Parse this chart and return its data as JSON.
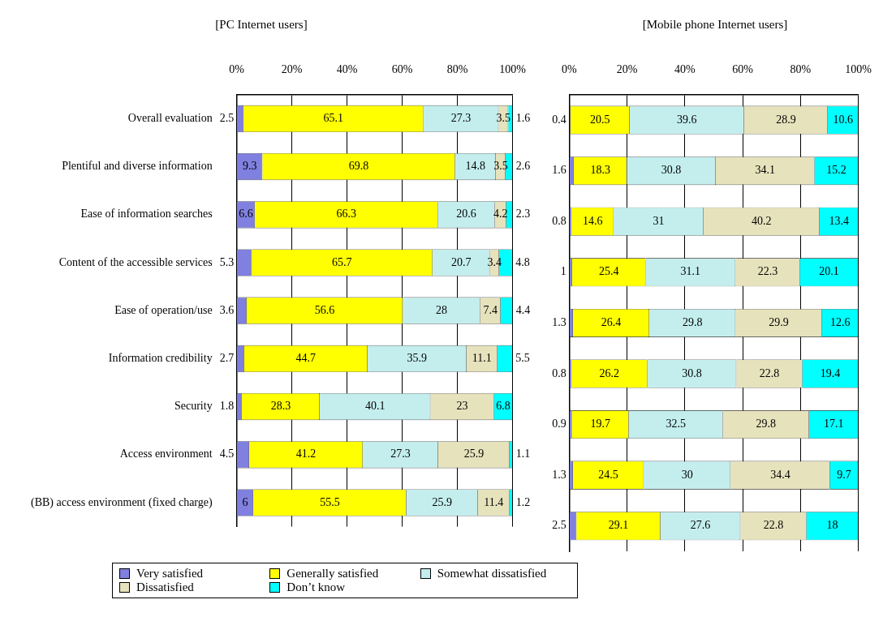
{
  "chart_data": [
    {
      "type": "bar",
      "orientation": "horizontal",
      "stacked": true,
      "title": "[PC Internet users]",
      "categories": [
        "Overall evaluation",
        "Plentiful and diverse information",
        "Ease of information searches",
        "Content of the accessible services",
        "Ease of operation/use",
        "Information credibility",
        "Security",
        "Access environment",
        "(BB) access environment (fixed charge)"
      ],
      "series": [
        {
          "name": "Very satisfied",
          "color": "#8080e0",
          "values": [
            2.5,
            9.3,
            6.6,
            5.3,
            3.6,
            2.7,
            1.8,
            4.5,
            6.0
          ]
        },
        {
          "name": "Generally satisfied",
          "color": "#ffff00",
          "values": [
            65.1,
            69.8,
            66.3,
            65.7,
            56.6,
            44.7,
            28.3,
            41.2,
            55.5
          ]
        },
        {
          "name": "Somewhat dissatisfied",
          "color": "#c4eeee",
          "values": [
            27.3,
            14.8,
            20.6,
            20.7,
            28.0,
            35.9,
            40.1,
            27.3,
            25.9
          ]
        },
        {
          "name": "Dissatisfied",
          "color": "#e6e2bc",
          "values": [
            3.5,
            3.5,
            4.2,
            3.4,
            7.4,
            11.1,
            23.0,
            25.9,
            11.4
          ]
        },
        {
          "name": "Don’t know",
          "color": "#00ffff",
          "values": [
            1.6,
            2.6,
            2.3,
            4.8,
            4.4,
            5.5,
            6.8,
            1.1,
            1.2
          ]
        }
      ],
      "xlim": [
        0,
        100
      ],
      "xticks": [
        {
          "value": 0,
          "label": "0%"
        },
        {
          "value": 20,
          "label": "20%"
        },
        {
          "value": 40,
          "label": "40%"
        },
        {
          "value": 60,
          "label": "60%"
        },
        {
          "value": 80,
          "label": "80%"
        },
        {
          "value": 100,
          "label": "100%"
        }
      ],
      "grid": "x",
      "legend": "bottom",
      "data_labels": true
    },
    {
      "type": "bar",
      "orientation": "horizontal",
      "stacked": true,
      "title": "[Mobile phone Internet users]",
      "categories": [
        null,
        null,
        null,
        null,
        null,
        null,
        null,
        null,
        null
      ],
      "series": [
        {
          "color": "#8080e0",
          "values": [
            0.4,
            1.6,
            0.8,
            1.0,
            1.3,
            0.8,
            0.9,
            1.3,
            2.5
          ]
        },
        {
          "color": "#ffff00",
          "values": [
            20.5,
            18.3,
            14.6,
            25.4,
            26.4,
            26.2,
            19.7,
            24.5,
            29.1
          ]
        },
        {
          "color": "#c4eeee",
          "values": [
            39.6,
            30.8,
            31.0,
            31.1,
            29.8,
            30.8,
            32.5,
            30.0,
            27.6
          ]
        },
        {
          "color": "#e6e2bc",
          "values": [
            28.9,
            34.1,
            40.2,
            22.3,
            29.9,
            22.8,
            29.8,
            34.4,
            22.8
          ]
        },
        {
          "color": "#00ffff",
          "values": [
            10.6,
            15.2,
            13.4,
            20.1,
            12.6,
            19.4,
            17.1,
            9.7,
            18.0
          ]
        }
      ],
      "xlim": [
        0,
        100
      ],
      "xticks": [
        {
          "value": 0,
          "label": "0%"
        },
        {
          "value": 20,
          "label": "20%"
        },
        {
          "value": 40,
          "label": "40%"
        },
        {
          "value": 60,
          "label": "60%"
        },
        {
          "value": 80,
          "label": "80%"
        },
        {
          "value": 100,
          "label": "100%"
        }
      ],
      "grid": "x",
      "data_labels": true,
      "tick_labels": "x"
    }
  ]
}
